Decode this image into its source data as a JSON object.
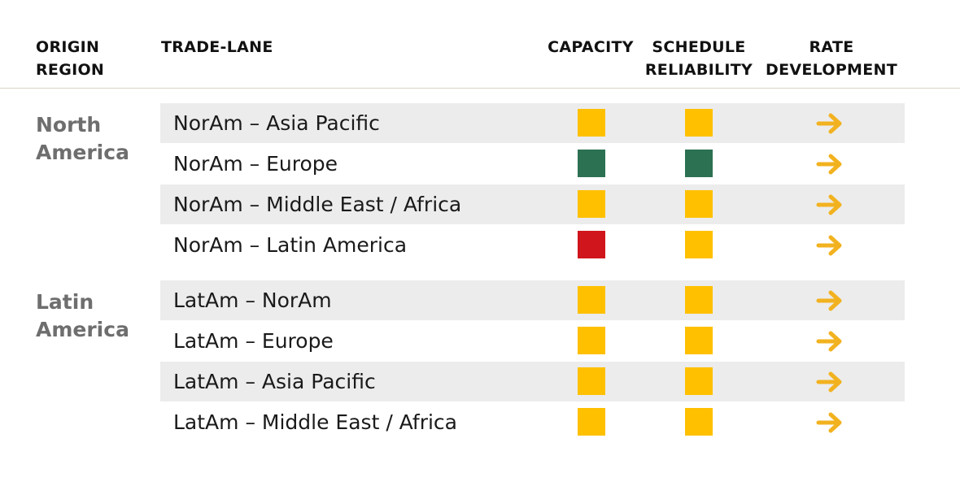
{
  "headers": {
    "origin_region": "ORIGIN\nREGION",
    "trade_lane": "TRADE-LANE",
    "capacity": "CAPACITY",
    "schedule_reliability": "SCHEDULE\nRELIABILITY",
    "rate_development": "RATE\nDEVELOPMENT"
  },
  "colors": {
    "yellow": "#ffc000",
    "green": "#2c7152",
    "red": "#d0161c",
    "arrow": "#f2b21f",
    "region_text": "#6e6e6e",
    "row_shade": "#ececec"
  },
  "regions": [
    {
      "name": "North\nAmerica",
      "rows": [
        {
          "lane": "NorAm – Asia Pacific",
          "capacity": "yellow",
          "schedule": "yellow",
          "rate": "right-arrow-icon"
        },
        {
          "lane": "NorAm – Europe",
          "capacity": "green",
          "schedule": "green",
          "rate": "right-arrow-icon"
        },
        {
          "lane": "NorAm – Middle East / Africa",
          "capacity": "yellow",
          "schedule": "yellow",
          "rate": "right-arrow-icon"
        },
        {
          "lane": "NorAm – Latin America",
          "capacity": "red",
          "schedule": "yellow",
          "rate": "right-arrow-icon"
        }
      ]
    },
    {
      "name": "Latin\nAmerica",
      "rows": [
        {
          "lane": "LatAm – NorAm",
          "capacity": "yellow",
          "schedule": "yellow",
          "rate": "right-arrow-icon"
        },
        {
          "lane": "LatAm – Europe",
          "capacity": "yellow",
          "schedule": "yellow",
          "rate": "right-arrow-icon"
        },
        {
          "lane": "LatAm – Asia Pacific",
          "capacity": "yellow",
          "schedule": "yellow",
          "rate": "right-arrow-icon"
        },
        {
          "lane": "LatAm – Middle East / Africa",
          "capacity": "yellow",
          "schedule": "yellow",
          "rate": "right-arrow-icon"
        }
      ]
    }
  ]
}
